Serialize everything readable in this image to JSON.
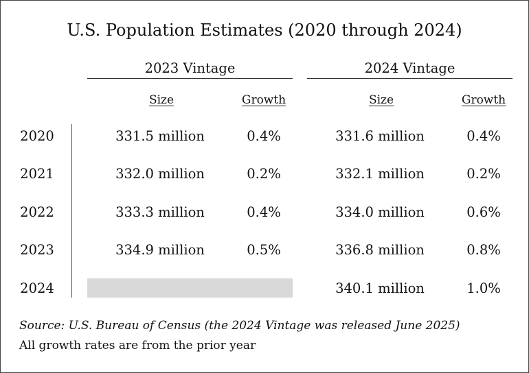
{
  "title": "U.S. Population Estimates (2020 through 2024)",
  "vintages": [
    {
      "label": "2023 Vintage",
      "size_header": "Size",
      "growth_header": "Growth"
    },
    {
      "label": "2024 Vintage",
      "size_header": "Size",
      "growth_header": "Growth"
    }
  ],
  "rows": [
    {
      "year": "2020",
      "v2023_size": "331.5 million",
      "v2023_growth": "0.4%",
      "v2024_size": "331.6 million",
      "v2024_growth": "0.4%"
    },
    {
      "year": "2021",
      "v2023_size": "332.0 million",
      "v2023_growth": "0.2%",
      "v2024_size": "332.1 million",
      "v2024_growth": "0.2%"
    },
    {
      "year": "2022",
      "v2023_size": "333.3 million",
      "v2023_growth": "0.4%",
      "v2024_size": "334.0 million",
      "v2024_growth": "0.6%"
    },
    {
      "year": "2023",
      "v2023_size": "334.9 million",
      "v2023_growth": "0.5%",
      "v2024_size": "336.8 million",
      "v2024_growth": "0.8%"
    },
    {
      "year": "2024",
      "v2023_size": "",
      "v2023_growth": "",
      "v2024_size": "340.1 million",
      "v2024_growth": "1.0%"
    }
  ],
  "source": "Source: U.S. Bureau of Census (the 2024 Vintage was released June 2025)",
  "note": "All growth rates are from the prior year",
  "colors": {
    "blank_cell": "#d9d9d9",
    "rule": "#333333",
    "text": "#111111"
  }
}
